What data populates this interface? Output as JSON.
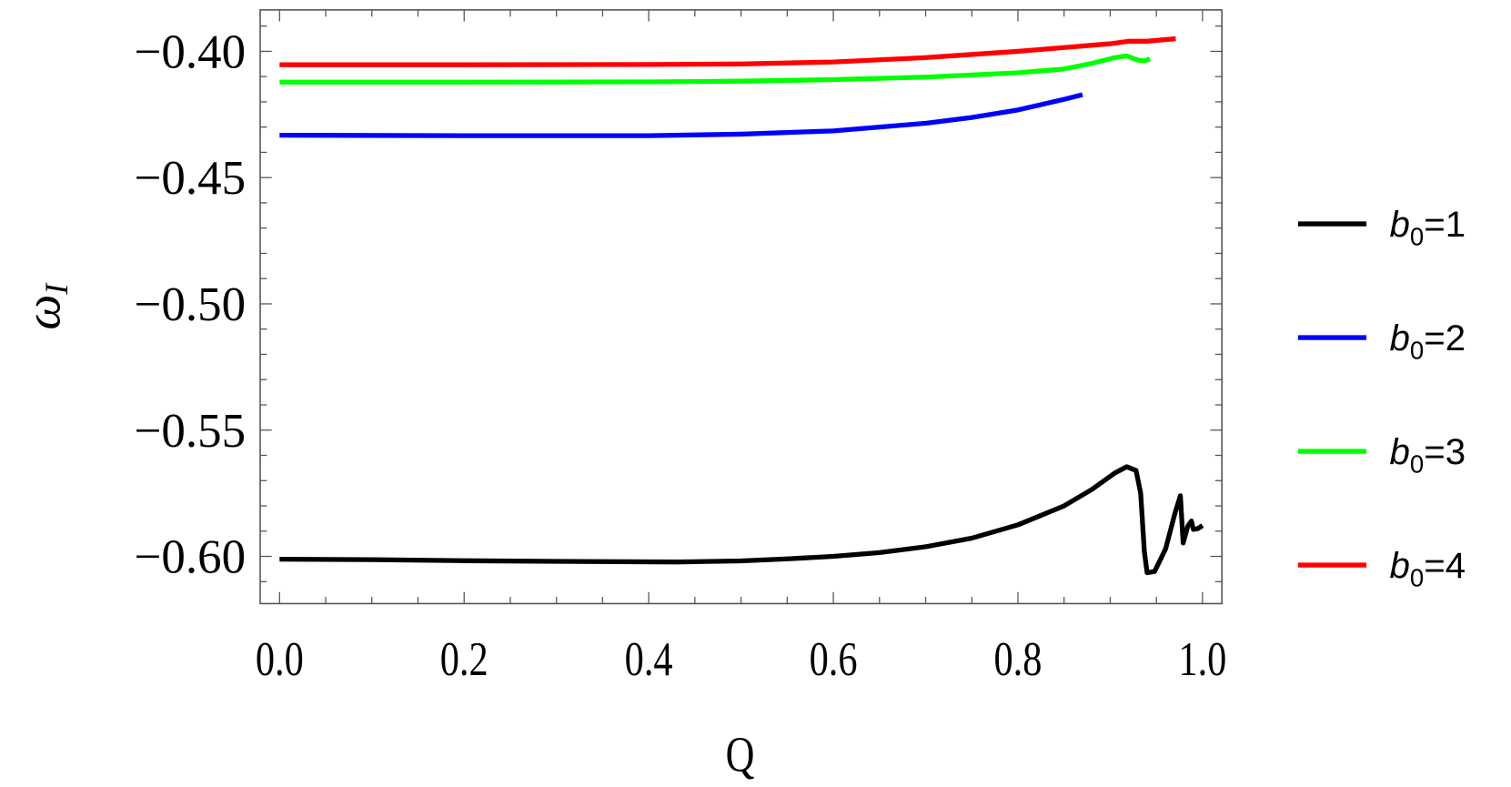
{
  "chart_data": {
    "type": "line",
    "title": "",
    "xlabel": "Q",
    "ylabel": "ω_I",
    "xlim": [
      -0.021,
      1.021
    ],
    "ylim": [
      -0.6187,
      -0.3836
    ],
    "x_ticks": [
      "0.0",
      "0.2",
      "0.4",
      "0.6",
      "0.8",
      "1.0"
    ],
    "x_tick_values": [
      0,
      0.2,
      0.4,
      0.6,
      0.8,
      1.0
    ],
    "y_ticks": [
      "−0.40",
      "−0.45",
      "−0.50",
      "−0.55",
      "−0.60"
    ],
    "y_tick_values": [
      -0.4,
      -0.45,
      -0.5,
      -0.55,
      -0.6
    ],
    "grid": false,
    "legend_position": "right",
    "series": [
      {
        "name": "b0=1",
        "label_base": "b",
        "label_sub": "0",
        "label_rest": "=1",
        "color": "#000000",
        "points": [
          [
            0,
            -0.6011
          ],
          [
            0.1,
            -0.6013
          ],
          [
            0.2,
            -0.6017
          ],
          [
            0.3,
            -0.602
          ],
          [
            0.43,
            -0.6022
          ],
          [
            0.5,
            -0.6018
          ],
          [
            0.55,
            -0.601
          ],
          [
            0.6,
            -0.6
          ],
          [
            0.65,
            -0.5985
          ],
          [
            0.7,
            -0.5962
          ],
          [
            0.75,
            -0.5928
          ],
          [
            0.8,
            -0.5875
          ],
          [
            0.85,
            -0.58
          ],
          [
            0.88,
            -0.5735
          ],
          [
            0.905,
            -0.567
          ],
          [
            0.918,
            -0.5645
          ],
          [
            0.928,
            -0.566
          ],
          [
            0.933,
            -0.575
          ],
          [
            0.937,
            -0.598
          ],
          [
            0.94,
            -0.6065
          ],
          [
            0.948,
            -0.606
          ],
          [
            0.96,
            -0.597
          ],
          [
            0.97,
            -0.583
          ],
          [
            0.976,
            -0.576
          ],
          [
            0.979,
            -0.5947
          ],
          [
            0.984,
            -0.588
          ],
          [
            0.988,
            -0.586
          ],
          [
            0.99,
            -0.5893
          ],
          [
            0.995,
            -0.589
          ],
          [
            1.0,
            -0.5878
          ]
        ]
      },
      {
        "name": "b0=2",
        "label_base": "b",
        "label_sub": "0",
        "label_rest": "=2",
        "color": "#0000ff",
        "points": [
          [
            0,
            -0.4332
          ],
          [
            0.2,
            -0.4334
          ],
          [
            0.4,
            -0.4334
          ],
          [
            0.5,
            -0.4328
          ],
          [
            0.6,
            -0.4315
          ],
          [
            0.7,
            -0.4285
          ],
          [
            0.75,
            -0.4262
          ],
          [
            0.8,
            -0.4232
          ],
          [
            0.85,
            -0.419
          ],
          [
            0.87,
            -0.4172
          ]
        ]
      },
      {
        "name": "b0=3",
        "label_base": "b",
        "label_sub": "0",
        "label_rest": "=3",
        "color": "#00ff00",
        "points": [
          [
            0,
            -0.4122
          ],
          [
            0.2,
            -0.4122
          ],
          [
            0.4,
            -0.4121
          ],
          [
            0.5,
            -0.4118
          ],
          [
            0.6,
            -0.4112
          ],
          [
            0.7,
            -0.4102
          ],
          [
            0.8,
            -0.4085
          ],
          [
            0.85,
            -0.407
          ],
          [
            0.88,
            -0.4048
          ],
          [
            0.905,
            -0.4025
          ],
          [
            0.918,
            -0.4018
          ],
          [
            0.93,
            -0.4035
          ],
          [
            0.937,
            -0.4038
          ],
          [
            0.943,
            -0.403
          ]
        ]
      },
      {
        "name": "b0=4",
        "label_base": "b",
        "label_sub": "0",
        "label_rest": "=4",
        "color": "#ff0000",
        "points": [
          [
            0,
            -0.4053
          ],
          [
            0.2,
            -0.4053
          ],
          [
            0.4,
            -0.4052
          ],
          [
            0.5,
            -0.405
          ],
          [
            0.6,
            -0.4042
          ],
          [
            0.7,
            -0.4025
          ],
          [
            0.8,
            -0.4
          ],
          [
            0.85,
            -0.3985
          ],
          [
            0.9,
            -0.397
          ],
          [
            0.92,
            -0.396
          ],
          [
            0.94,
            -0.396
          ],
          [
            0.955,
            -0.3955
          ],
          [
            0.971,
            -0.395
          ]
        ]
      }
    ]
  }
}
